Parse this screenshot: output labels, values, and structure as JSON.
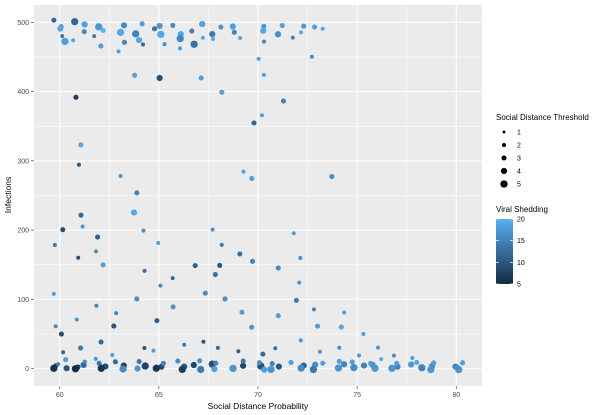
{
  "chart_data": {
    "type": "scatter",
    "title": "",
    "xlabel": "Social Distance Probability",
    "ylabel": "Infections",
    "xlim": [
      58.7,
      81.3
    ],
    "ylim": [
      -25,
      525
    ],
    "x_ticks": [
      60,
      65,
      70,
      75,
      80
    ],
    "y_ticks": [
      0,
      100,
      200,
      300,
      400,
      500
    ],
    "grid": true,
    "background": "#ebebeb",
    "legends": {
      "size": {
        "title": "Social Distance Threshold",
        "values": [
          1,
          2,
          3,
          4,
          5
        ]
      },
      "color": {
        "title": "Viral Shedding",
        "range": [
          5,
          20
        ],
        "ticks": [
          5,
          10,
          15,
          20
        ],
        "low_color": "#132b43",
        "high_color": "#56b1f7"
      }
    },
    "points": [
      [
        60,
        495,
        3,
        17
      ],
      [
        60,
        488,
        4,
        19
      ],
      [
        60,
        480,
        2,
        14
      ],
      [
        60,
        470,
        5,
        18
      ],
      [
        60,
        500,
        3,
        12
      ],
      [
        60,
        5,
        3,
        8
      ],
      [
        60,
        2,
        4,
        10
      ],
      [
        60,
        8,
        2,
        15
      ],
      [
        60,
        0,
        5,
        6
      ],
      [
        60,
        12,
        3,
        18
      ],
      [
        60,
        25,
        2,
        12
      ],
      [
        60,
        50,
        3,
        9
      ],
      [
        60,
        60,
        2,
        16
      ],
      [
        60,
        107,
        2,
        18
      ],
      [
        60,
        180,
        2,
        14
      ],
      [
        60,
        200,
        3,
        9
      ],
      [
        61,
        495,
        4,
        18
      ],
      [
        61,
        485,
        3,
        16
      ],
      [
        61,
        475,
        2,
        19
      ],
      [
        61,
        500,
        5,
        12
      ],
      [
        61,
        3,
        3,
        7
      ],
      [
        61,
        6,
        4,
        12
      ],
      [
        61,
        10,
        2,
        16
      ],
      [
        61,
        0,
        5,
        5
      ],
      [
        61,
        30,
        3,
        14
      ],
      [
        61,
        70,
        2,
        17
      ],
      [
        61,
        222,
        3,
        12
      ],
      [
        61,
        205,
        2,
        17
      ],
      [
        61,
        160,
        2,
        9
      ],
      [
        61,
        393,
        3,
        7
      ],
      [
        61,
        323,
        3,
        19
      ],
      [
        61,
        295,
        2,
        10
      ],
      [
        62,
        496,
        5,
        17
      ],
      [
        62,
        490,
        3,
        20
      ],
      [
        62,
        478,
        2,
        14
      ],
      [
        62,
        465,
        3,
        18
      ],
      [
        62,
        4,
        4,
        9
      ],
      [
        62,
        8,
        3,
        14
      ],
      [
        62,
        0,
        5,
        6
      ],
      [
        62,
        15,
        2,
        17
      ],
      [
        62,
        40,
        3,
        12
      ],
      [
        62,
        90,
        2,
        15
      ],
      [
        62,
        150,
        3,
        18
      ],
      [
        62,
        190,
        3,
        11
      ],
      [
        62,
        170,
        2,
        16
      ],
      [
        63,
        497,
        4,
        16
      ],
      [
        63,
        488,
        5,
        19
      ],
      [
        63,
        470,
        3,
        15
      ],
      [
        63,
        460,
        2,
        18
      ],
      [
        63,
        5,
        4,
        7
      ],
      [
        63,
        10,
        3,
        12
      ],
      [
        63,
        0,
        5,
        16
      ],
      [
        63,
        20,
        2,
        18
      ],
      [
        63,
        60,
        3,
        10
      ],
      [
        63,
        80,
        2,
        15
      ],
      [
        63,
        277,
        2,
        17
      ],
      [
        64,
        495,
        3,
        18
      ],
      [
        64,
        485,
        5,
        15
      ],
      [
        64,
        475,
        4,
        19
      ],
      [
        64,
        468,
        2,
        12
      ],
      [
        64,
        3,
        5,
        8
      ],
      [
        64,
        9,
        3,
        14
      ],
      [
        64,
        0,
        4,
        17
      ],
      [
        64,
        30,
        2,
        10
      ],
      [
        64,
        100,
        3,
        16
      ],
      [
        64,
        140,
        2,
        13
      ],
      [
        64,
        425,
        3,
        18
      ],
      [
        64,
        255,
        3,
        15
      ],
      [
        64,
        225,
        4,
        19
      ],
      [
        64,
        200,
        2,
        16
      ],
      [
        65,
        496,
        4,
        17
      ],
      [
        65,
        490,
        3,
        13
      ],
      [
        65,
        480,
        5,
        19
      ],
      [
        65,
        470,
        2,
        16
      ],
      [
        65,
        4,
        4,
        9
      ],
      [
        65,
        8,
        3,
        15
      ],
      [
        65,
        0,
        5,
        6
      ],
      [
        65,
        25,
        2,
        18
      ],
      [
        65,
        70,
        3,
        11
      ],
      [
        65,
        120,
        2,
        16
      ],
      [
        65,
        417,
        4,
        9
      ],
      [
        65,
        180,
        2,
        18
      ],
      [
        66,
        495,
        3,
        16
      ],
      [
        66,
        485,
        4,
        19
      ],
      [
        66,
        475,
        5,
        15
      ],
      [
        66,
        465,
        2,
        18
      ],
      [
        66,
        3,
        4,
        10
      ],
      [
        66,
        10,
        3,
        16
      ],
      [
        66,
        0,
        5,
        7
      ],
      [
        66,
        35,
        2,
        14
      ],
      [
        66,
        90,
        3,
        17
      ],
      [
        66,
        130,
        2,
        12
      ],
      [
        67,
        497,
        4,
        18
      ],
      [
        67,
        488,
        3,
        15
      ],
      [
        67,
        478,
        2,
        19
      ],
      [
        67,
        470,
        5,
        13
      ],
      [
        67,
        5,
        4,
        8
      ],
      [
        67,
        12,
        3,
        17
      ],
      [
        67,
        0,
        5,
        14
      ],
      [
        67,
        40,
        2,
        10
      ],
      [
        67,
        110,
        3,
        16
      ],
      [
        67,
        150,
        3,
        11
      ],
      [
        67,
        420,
        3,
        18
      ],
      [
        68,
        496,
        3,
        17
      ],
      [
        68,
        486,
        4,
        14
      ],
      [
        68,
        476,
        2,
        19
      ],
      [
        68,
        5,
        5,
        9
      ],
      [
        68,
        9,
        3,
        15
      ],
      [
        68,
        0,
        4,
        18
      ],
      [
        68,
        30,
        2,
        12
      ],
      [
        68,
        100,
        3,
        16
      ],
      [
        68,
        150,
        3,
        10
      ],
      [
        68,
        135,
        3,
        13
      ],
      [
        68,
        399,
        3,
        18
      ],
      [
        68,
        200,
        2,
        17
      ],
      [
        68,
        180,
        2,
        14
      ],
      [
        69,
        495,
        4,
        18
      ],
      [
        69,
        487,
        3,
        15
      ],
      [
        69,
        477,
        2,
        19
      ],
      [
        69,
        4,
        4,
        8
      ],
      [
        69,
        11,
        3,
        14
      ],
      [
        69,
        0,
        5,
        17
      ],
      [
        69,
        25,
        2,
        11
      ],
      [
        69,
        80,
        3,
        18
      ],
      [
        69,
        165,
        3,
        13
      ],
      [
        69,
        285,
        2,
        18
      ],
      [
        70,
        494,
        3,
        17
      ],
      [
        70,
        485,
        4,
        19
      ],
      [
        70,
        470,
        2,
        15
      ],
      [
        70,
        450,
        2,
        18
      ],
      [
        70,
        5,
        5,
        9
      ],
      [
        70,
        10,
        3,
        16
      ],
      [
        70,
        0,
        4,
        18
      ],
      [
        70,
        20,
        3,
        12
      ],
      [
        70,
        60,
        3,
        17
      ],
      [
        70,
        155,
        3,
        15
      ],
      [
        70,
        275,
        3,
        18
      ],
      [
        70,
        355,
        3,
        12
      ],
      [
        70,
        365,
        2,
        18
      ],
      [
        70,
        425,
        2,
        18
      ],
      [
        71,
        495,
        3,
        18
      ],
      [
        71,
        485,
        4,
        16
      ],
      [
        71,
        3,
        4,
        10
      ],
      [
        71,
        8,
        3,
        15
      ],
      [
        71,
        0,
        5,
        17
      ],
      [
        71,
        30,
        2,
        13
      ],
      [
        71,
        75,
        3,
        18
      ],
      [
        71,
        145,
        3,
        16
      ],
      [
        71,
        385,
        3,
        15
      ],
      [
        72,
        494,
        3,
        17
      ],
      [
        72,
        488,
        2,
        19
      ],
      [
        72,
        478,
        2,
        15
      ],
      [
        72,
        4,
        4,
        11
      ],
      [
        72,
        10,
        3,
        18
      ],
      [
        72,
        0,
        5,
        16
      ],
      [
        72,
        40,
        2,
        17
      ],
      [
        72,
        100,
        3,
        14
      ],
      [
        72,
        195,
        2,
        18
      ],
      [
        72,
        160,
        2,
        16
      ],
      [
        72,
        125,
        2,
        17
      ],
      [
        73,
        496,
        3,
        18
      ],
      [
        73,
        488,
        2,
        19
      ],
      [
        73,
        451,
        2,
        16
      ],
      [
        73,
        5,
        4,
        16
      ],
      [
        73,
        9,
        3,
        18
      ],
      [
        73,
        0,
        5,
        14
      ],
      [
        73,
        25,
        2,
        17
      ],
      [
        73,
        60,
        3,
        18
      ],
      [
        73,
        85,
        2,
        15
      ],
      [
        74,
        5,
        4,
        15
      ],
      [
        74,
        10,
        3,
        18
      ],
      [
        74,
        0,
        5,
        17
      ],
      [
        74,
        30,
        2,
        16
      ],
      [
        74,
        60,
        3,
        19
      ],
      [
        74,
        278,
        3,
        16
      ],
      [
        74,
        80,
        2,
        18
      ],
      [
        75,
        4,
        4,
        15
      ],
      [
        75,
        9,
        3,
        18
      ],
      [
        75,
        0,
        5,
        16
      ],
      [
        75,
        20,
        2,
        17
      ],
      [
        75,
        50,
        2,
        18
      ],
      [
        76,
        5,
        4,
        16
      ],
      [
        76,
        9,
        3,
        18
      ],
      [
        76,
        0,
        5,
        17
      ],
      [
        76,
        15,
        2,
        19
      ],
      [
        76,
        30,
        2,
        17
      ],
      [
        77,
        4,
        4,
        15
      ],
      [
        77,
        8,
        3,
        18
      ],
      [
        77,
        0,
        5,
        17
      ],
      [
        77,
        20,
        2,
        16
      ],
      [
        78,
        5,
        4,
        17
      ],
      [
        78,
        8,
        3,
        19
      ],
      [
        78,
        0,
        5,
        15
      ],
      [
        78,
        14,
        2,
        18
      ],
      [
        79,
        4,
        4,
        16
      ],
      [
        79,
        8,
        3,
        18
      ],
      [
        79,
        0,
        5,
        17
      ],
      [
        80,
        4,
        4,
        15
      ],
      [
        80,
        8,
        3,
        18
      ],
      [
        80,
        0,
        5,
        17
      ],
      [
        80,
        2,
        3,
        16
      ]
    ]
  }
}
